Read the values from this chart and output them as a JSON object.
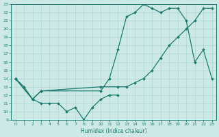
{
  "line1_x": [
    0,
    1,
    2,
    3,
    4,
    5,
    6,
    7,
    8,
    9,
    10,
    11,
    12
  ],
  "line1_y": [
    14,
    13,
    11.5,
    11,
    11,
    11,
    10,
    10.5,
    9,
    10.5,
    11.5,
    12,
    12
  ],
  "line2_x": [
    0,
    2,
    3,
    10,
    11,
    12,
    13,
    14,
    15,
    16,
    17,
    18,
    19,
    20,
    21,
    22,
    23
  ],
  "line2_y": [
    14,
    11.5,
    12.5,
    12.5,
    14,
    17.5,
    21.5,
    22,
    23,
    22.5,
    22,
    22.5,
    22.5,
    21,
    16,
    17.5,
    14
  ],
  "line3_x": [
    0,
    2,
    3,
    10,
    12,
    13,
    14,
    15,
    16,
    17,
    18,
    19,
    20,
    21,
    22,
    23
  ],
  "line3_y": [
    14,
    11.5,
    12.5,
    13,
    13,
    13,
    13.5,
    14,
    15,
    16.5,
    18,
    19,
    20,
    21,
    22.5,
    22.5
  ],
  "line_color": "#1a7a6e",
  "bg_color": "#cce9e5",
  "grid_color": "#afd6d1",
  "xlabel": "Humidex (Indice chaleur)",
  "ylim": [
    9,
    23
  ],
  "xlim": [
    -0.5,
    23.5
  ],
  "yticks": [
    9,
    10,
    11,
    12,
    13,
    14,
    15,
    16,
    17,
    18,
    19,
    20,
    21,
    22,
    23
  ],
  "xticks": [
    0,
    1,
    2,
    3,
    4,
    5,
    6,
    7,
    8,
    9,
    10,
    11,
    12,
    13,
    14,
    15,
    16,
    17,
    18,
    19,
    20,
    21,
    22,
    23
  ]
}
